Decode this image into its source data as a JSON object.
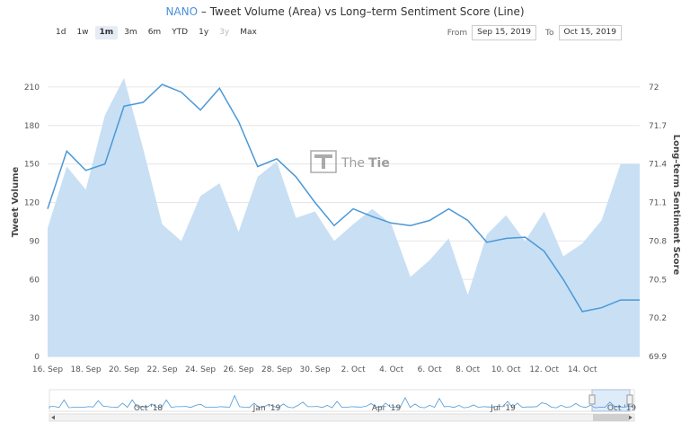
{
  "header": {
    "ticker": "NANO",
    "title_rest": " – Tweet Volume (Area) vs Long–term Sentiment Score (Line)"
  },
  "range_selector": {
    "buttons": [
      "1d",
      "1w",
      "1m",
      "3m",
      "6m",
      "YTD",
      "1y",
      "3y",
      "Max"
    ],
    "active": "1m",
    "disabled": [
      "3y"
    ]
  },
  "date_range": {
    "from_label": "From",
    "from_value": "Sep 15, 2019",
    "to_label": "To",
    "to_value": "Oct 15, 2019"
  },
  "watermark": {
    "brand_part1": "The",
    "brand_part2": "Tie"
  },
  "colors": {
    "area_fill": "#c8dff4",
    "line": "#4a98d6",
    "accent": "#4a90d9",
    "grid": "#e6e6e6"
  },
  "chart_data": {
    "type": "area+line",
    "title": "NANO – Tweet Volume (Area) vs Long–term Sentiment Score (Line)",
    "x_labels": [
      "16. Sep",
      "18. Sep",
      "20. Sep",
      "22. Sep",
      "24. Sep",
      "26. Sep",
      "28. Sep",
      "30. Sep",
      "2. Oct",
      "4. Oct",
      "6. Oct",
      "8. Oct",
      "10. Oct",
      "12. Oct",
      "14. Oct"
    ],
    "x_label_days": [
      0,
      2,
      4,
      6,
      8,
      10,
      12,
      14,
      16,
      18,
      20,
      22,
      24,
      26,
      28
    ],
    "x_range_days": [
      0,
      31
    ],
    "left_axis": {
      "title": "Tweet Volume",
      "ticks": [
        0,
        30,
        60,
        90,
        120,
        150,
        180,
        210
      ],
      "range": [
        0,
        240
      ]
    },
    "right_axis": {
      "title": "Long–term Sentiment Score",
      "ticks": [
        69.9,
        70.2,
        70.5,
        70.8,
        71.1,
        71.4,
        71.7,
        72
      ],
      "range": [
        69.9,
        72.3
      ]
    },
    "series": [
      {
        "name": "Tweet Volume",
        "kind": "area",
        "axis": "left",
        "x": [
          0,
          1,
          2,
          3,
          4,
          5,
          6,
          7,
          8,
          9,
          10,
          11,
          12,
          13,
          14,
          15,
          16,
          17,
          18,
          19,
          20,
          21,
          22,
          23,
          24,
          25,
          26,
          27,
          28,
          29,
          30,
          31
        ],
        "values": [
          100,
          148,
          130,
          188,
          217,
          162,
          103,
          90,
          125,
          135,
          97,
          140,
          152,
          108,
          113,
          90,
          103,
          115,
          103,
          62,
          75,
          92,
          48,
          95,
          110,
          90,
          113,
          78,
          88,
          106,
          150,
          150
        ]
      },
      {
        "name": "Long–term Sentiment Score",
        "kind": "line",
        "axis": "right",
        "x": [
          0,
          1,
          2,
          3,
          4,
          5,
          6,
          7,
          8,
          9,
          10,
          11,
          12,
          13,
          14,
          15,
          16,
          17,
          18,
          19,
          20,
          21,
          22,
          23,
          24,
          25,
          26,
          27,
          28,
          29,
          30,
          31
        ],
        "values": [
          71.05,
          71.5,
          71.35,
          71.4,
          71.85,
          71.88,
          72.02,
          71.96,
          71.82,
          71.99,
          71.73,
          71.38,
          71.44,
          71.3,
          71.1,
          70.92,
          71.05,
          70.99,
          70.94,
          70.92,
          70.96,
          71.05,
          70.96,
          70.79,
          70.82,
          70.83,
          70.72,
          70.5,
          70.25,
          70.28,
          70.34,
          70.34
        ]
      }
    ]
  },
  "navigator": {
    "labels": [
      "Oct '18",
      "Jan '19",
      "Apr '19",
      "Jul '19",
      "Oct '19"
    ],
    "spikes": [
      0.35,
      0.8,
      0.4,
      0.6,
      0.3,
      0.5,
      0.25,
      0.45,
      0.7,
      0.3,
      0.55,
      0.9,
      0.35,
      0.5,
      0.4,
      1.0,
      0.45,
      0.6,
      0.3,
      0.75,
      0.4,
      0.85,
      0.5,
      0.3,
      0.6,
      0.45,
      0.7
    ]
  }
}
